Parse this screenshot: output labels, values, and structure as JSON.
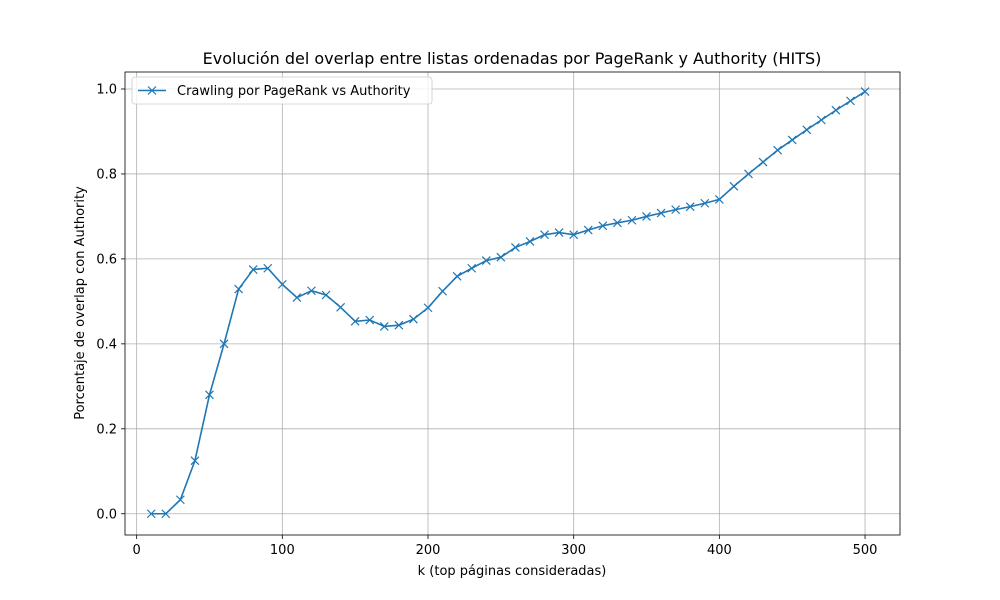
{
  "chart_data": {
    "type": "line",
    "title": "Evolución del overlap entre listas ordenadas por PageRank y Authority (HITS)",
    "xlabel": "k (top páginas consideradas)",
    "ylabel": "Porcentaje de overlap con Authority",
    "xlim": [
      -8,
      524
    ],
    "ylim": [
      -0.05,
      1.04
    ],
    "xticks": [
      0,
      100,
      200,
      300,
      400,
      500
    ],
    "yticks": [
      0.0,
      0.2,
      0.4,
      0.6,
      0.8,
      1.0
    ],
    "xtick_labels": [
      "0",
      "100",
      "200",
      "300",
      "400",
      "500"
    ],
    "ytick_labels": [
      "0.0",
      "0.2",
      "0.4",
      "0.6",
      "0.8",
      "1.0"
    ],
    "grid": true,
    "legend_position": "top-left",
    "series": [
      {
        "name": "Crawling por PageRank vs Authority",
        "color": "#1f77b4",
        "marker": "x",
        "x": [
          10,
          20,
          30,
          40,
          50,
          60,
          70,
          80,
          90,
          100,
          110,
          120,
          130,
          140,
          150,
          160,
          170,
          180,
          190,
          200,
          210,
          220,
          230,
          240,
          250,
          260,
          270,
          280,
          290,
          300,
          310,
          320,
          330,
          340,
          350,
          360,
          370,
          380,
          390,
          400,
          410,
          420,
          430,
          440,
          450,
          460,
          470,
          480,
          490,
          500
        ],
        "y": [
          0.0,
          0.0,
          0.033,
          0.125,
          0.28,
          0.4,
          0.529,
          0.575,
          0.578,
          0.54,
          0.509,
          0.525,
          0.515,
          0.486,
          0.453,
          0.456,
          0.441,
          0.444,
          0.458,
          0.485,
          0.524,
          0.559,
          0.578,
          0.596,
          0.604,
          0.627,
          0.641,
          0.657,
          0.662,
          0.657,
          0.668,
          0.678,
          0.685,
          0.691,
          0.7,
          0.708,
          0.716,
          0.723,
          0.731,
          0.74,
          0.771,
          0.8,
          0.828,
          0.856,
          0.88,
          0.904,
          0.927,
          0.95,
          0.972,
          0.994
        ]
      }
    ]
  }
}
